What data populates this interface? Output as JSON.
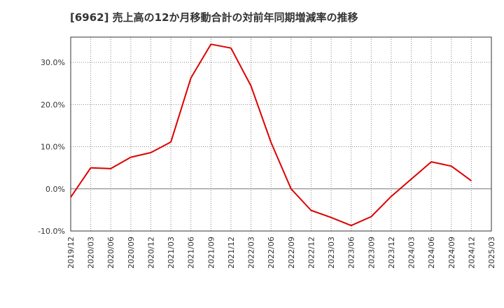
{
  "chart_data": {
    "type": "line",
    "title": "[6962]  売上高の12か月移動合計の対前年同期増減率の推移",
    "xlabel": "",
    "ylabel": "",
    "x": [
      "2019/12",
      "2020/03",
      "2020/06",
      "2020/09",
      "2020/12",
      "2021/03",
      "2021/06",
      "2021/09",
      "2021/12",
      "2022/03",
      "2022/06",
      "2022/09",
      "2022/12",
      "2023/03",
      "2023/06",
      "2023/09",
      "2023/12",
      "2024/03",
      "2024/06",
      "2024/09",
      "2024/12",
      "2025/03"
    ],
    "series": [
      {
        "name": "増減率",
        "color": "#dd0000",
        "values": [
          -2.0,
          5.0,
          4.8,
          7.5,
          8.6,
          11.1,
          26.3,
          34.3,
          33.4,
          24.4,
          11.0,
          0.0,
          -5.1,
          -6.8,
          -8.7,
          -6.6,
          -1.8,
          2.3,
          6.4,
          5.4,
          1.9,
          null
        ]
      }
    ],
    "ylim": [
      -10,
      36
    ],
    "yticks": [
      -10,
      0,
      10,
      20,
      30
    ],
    "ytick_labels": [
      "-10.0%",
      "0.0%",
      "10.0%",
      "20.0%",
      "30.0%"
    ],
    "grid": true
  }
}
